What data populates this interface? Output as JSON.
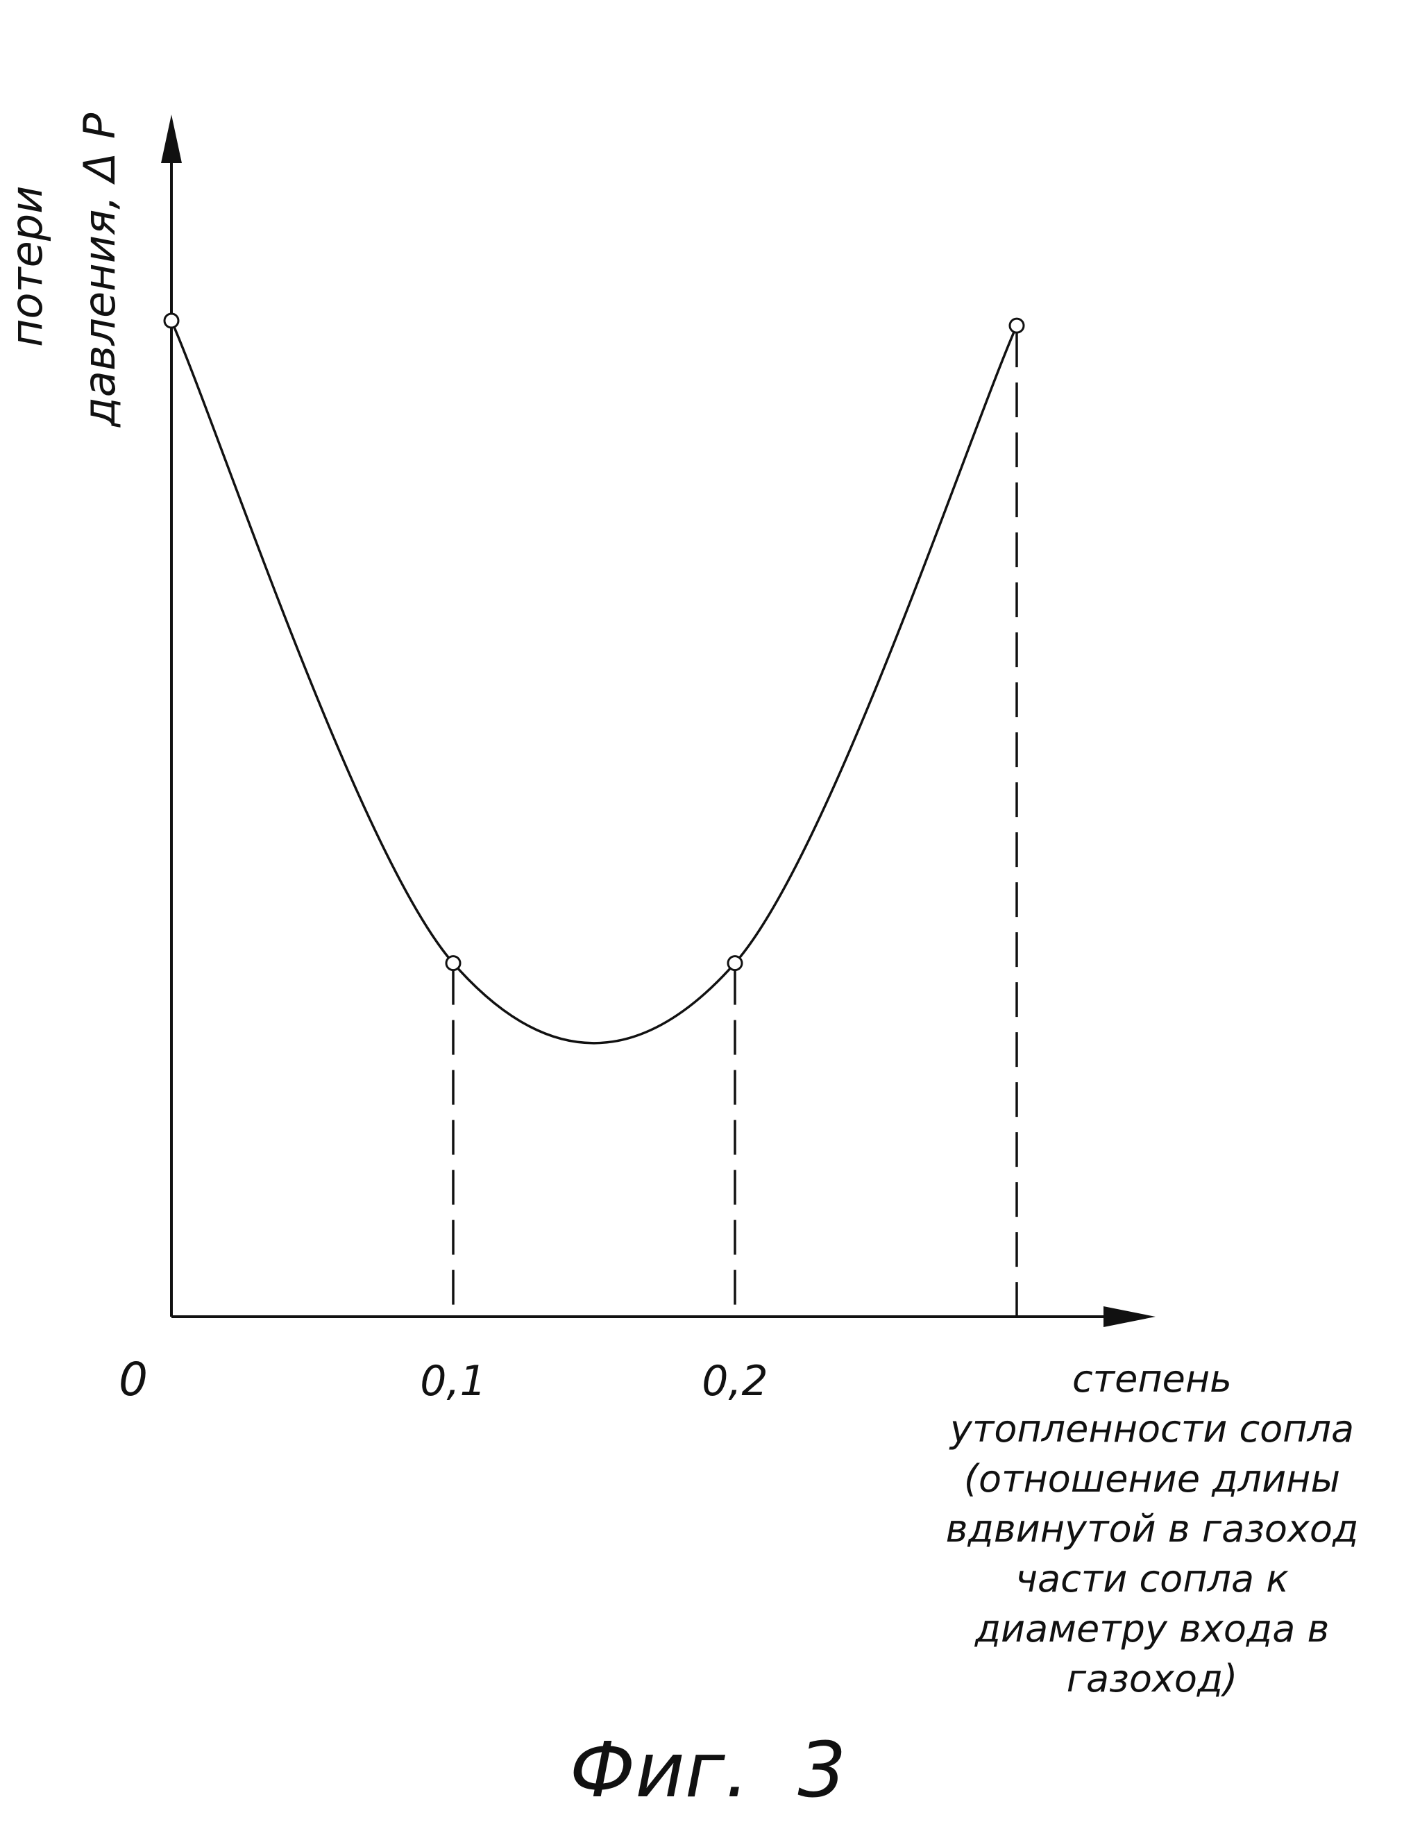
{
  "chart_data": {
    "type": "line",
    "ylabel_lines": [
      "потери",
      "давления, Δ P"
    ],
    "xlabel_lines": [
      "степень",
      "утопленности сопла",
      "(отношение длины",
      "вдвинутой в газоход",
      "части сопла к",
      "диаметру входа в",
      "газоход)"
    ],
    "x_ticks": [
      "0",
      "0,1",
      "0,2"
    ],
    "series": [
      {
        "x": [
          0,
          0.1,
          0.2,
          0.3
        ],
        "y": [
          1.0,
          0.355,
          0.355,
          0.995
        ]
      }
    ],
    "xlim": [
      0,
      0.35
    ],
    "ylim": [
      0,
      1.1
    ],
    "caption": "Фиг.  3"
  },
  "colors": {
    "ink": "#111111",
    "background": "#ffffff"
  }
}
